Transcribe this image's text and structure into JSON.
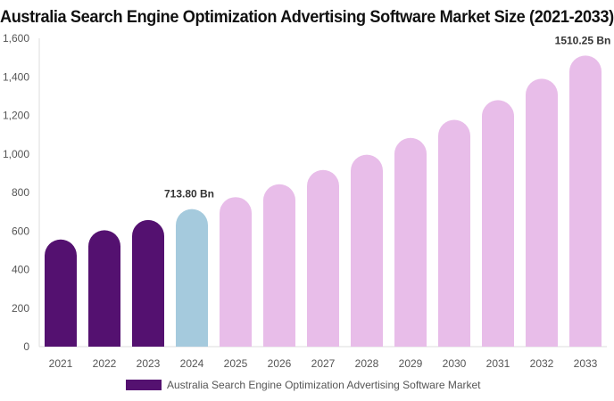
{
  "chart_data": {
    "type": "bar",
    "title": "Australia Search Engine Optimization Advertising Software Market Size (2021-2033)",
    "categories": [
      "2021",
      "2022",
      "2023",
      "2024",
      "2025",
      "2026",
      "2027",
      "2028",
      "2029",
      "2030",
      "2031",
      "2032",
      "2033"
    ],
    "series": [
      {
        "name": "Australia Search Engine Optimization Advertising Software Market",
        "values": [
          556,
          604,
          657,
          713.8,
          776,
          843,
          917,
          996,
          1083,
          1177,
          1279,
          1390,
          1510.25
        ]
      }
    ],
    "data_labels": {
      "3": "713.80 Bn",
      "12": "1510.25 Bn"
    },
    "ylim": [
      0,
      1600
    ],
    "yticks": [
      0,
      200,
      400,
      600,
      800,
      1000,
      1200,
      1400,
      1600
    ],
    "ytick_labels": [
      "0",
      "200",
      "400",
      "600",
      "800",
      "1,000",
      "1,200",
      "1,400",
      "1,600"
    ],
    "grid": false,
    "legend_position": "bottom",
    "colors": {
      "historical": "#541170",
      "current": "#a5cadd",
      "forecast": "#e8bde9"
    }
  }
}
